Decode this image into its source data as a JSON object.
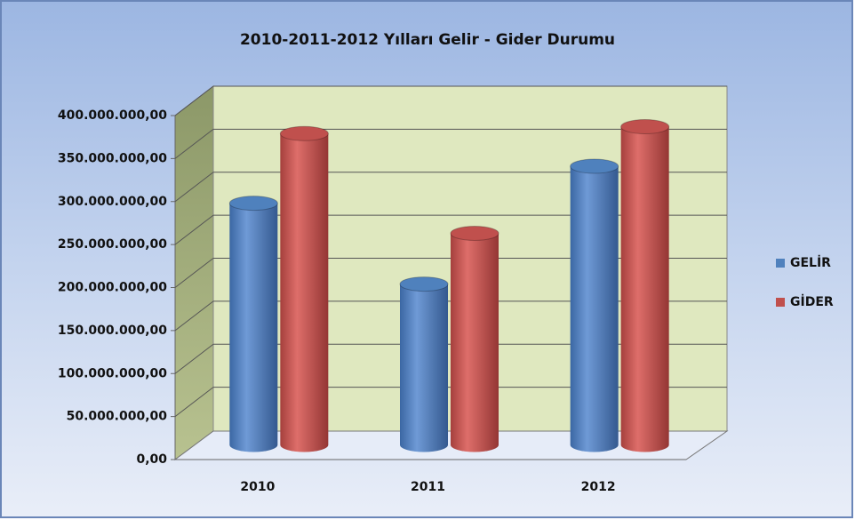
{
  "chart_data": {
    "type": "bar3d",
    "title": "2010-2011-2012 Yılları Gelir - Gider Durumu",
    "categories": [
      "2010",
      "2011",
      "2012"
    ],
    "series": [
      {
        "name": "GELİR",
        "color": "#4f81bd",
        "values": [
          281000000,
          187000000,
          324000000
        ]
      },
      {
        "name": "GİDER",
        "color": "#c0504d",
        "values": [
          362000000,
          246000000,
          370000000
        ]
      }
    ],
    "ylim": [
      0,
      400000000
    ],
    "yticks": [
      {
        "value": 0,
        "label": "0,00"
      },
      {
        "value": 50000000,
        "label": "50.000.000,00"
      },
      {
        "value": 100000000,
        "label": "100.000.000,00"
      },
      {
        "value": 150000000,
        "label": "150.000.000,00"
      },
      {
        "value": 200000000,
        "label": "200.000.000,00"
      },
      {
        "value": 250000000,
        "label": "250.000.000,00"
      },
      {
        "value": 300000000,
        "label": "300.000.000,00"
      },
      {
        "value": 350000000,
        "label": "350.000.000,00"
      },
      {
        "value": 400000000,
        "label": "400.000.000,00"
      }
    ],
    "grid": true,
    "legend": "right"
  }
}
